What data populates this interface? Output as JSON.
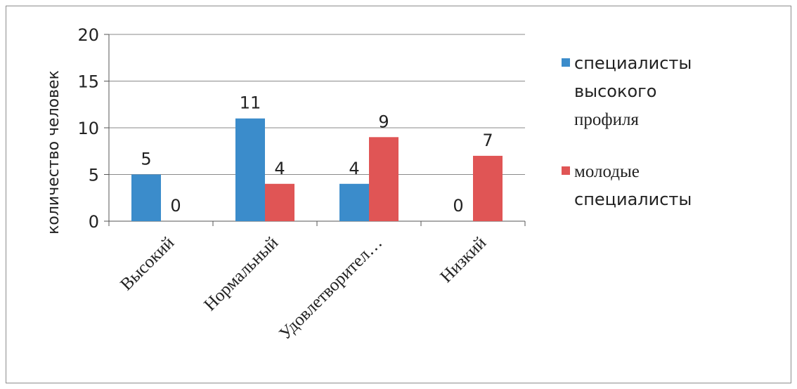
{
  "chart_data": {
    "type": "bar",
    "categories": [
      "Высокий",
      "Нормальный",
      "Удовлетворител…",
      "Низкий"
    ],
    "series": [
      {
        "name_lines": [
          "специалисты",
          "высокого",
          "профиля"
        ],
        "values": [
          5,
          11,
          4,
          0
        ],
        "color": "#3b8ccb"
      },
      {
        "name_lines": [
          "молодые",
          "специалисты"
        ],
        "values": [
          0,
          4,
          9,
          7
        ],
        "color": "#e05555"
      }
    ],
    "ylabel": "количество человек",
    "ylim": [
      0,
      20
    ],
    "yticks": [
      0,
      5,
      10,
      15,
      20
    ],
    "grid": true,
    "legend_position": "right"
  }
}
